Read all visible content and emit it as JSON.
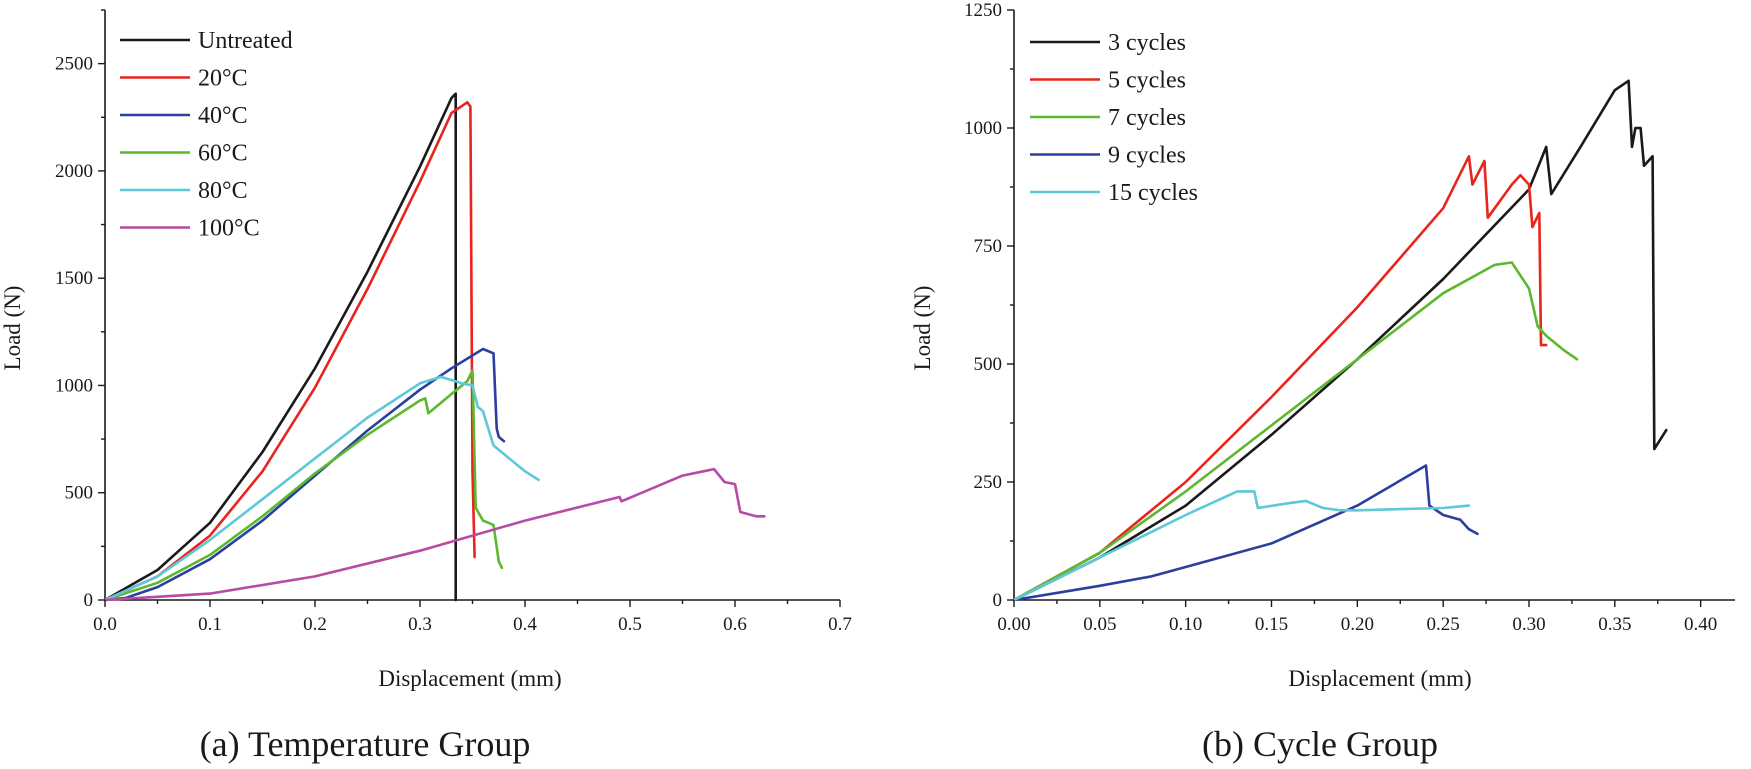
{
  "chart_data": [
    {
      "type": "line",
      "caption": "(a) Temperature Group",
      "xlabel": "Displacement (mm)",
      "ylabel": "Load (N)",
      "xlim": [
        0,
        0.7
      ],
      "ylim": [
        0,
        2750
      ],
      "xticks": [
        0.0,
        0.1,
        0.2,
        0.3,
        0.4,
        0.5,
        0.6,
        0.7
      ],
      "xtick_labels": [
        "0.0",
        "0.1",
        "0.2",
        "0.3",
        "0.4",
        "0.5",
        "0.6",
        "0.7"
      ],
      "yticks": [
        0,
        500,
        1000,
        1500,
        2000,
        2500
      ],
      "ytick_labels": [
        "0",
        "500",
        "1000",
        "1500",
        "2000",
        "2500"
      ],
      "grid": false,
      "legend_position": "top-left",
      "series": [
        {
          "name": "Untreated",
          "color": "#1a1a1a",
          "x": [
            0,
            0.05,
            0.1,
            0.15,
            0.2,
            0.25,
            0.3,
            0.33,
            0.334,
            0.334
          ],
          "y": [
            0,
            140,
            360,
            690,
            1080,
            1530,
            2020,
            2340,
            2360,
            0
          ]
        },
        {
          "name": "20°C",
          "color": "#e8241c",
          "x": [
            0,
            0.05,
            0.1,
            0.15,
            0.2,
            0.25,
            0.3,
            0.33,
            0.345,
            0.348,
            0.35,
            0.352
          ],
          "y": [
            0,
            110,
            300,
            600,
            990,
            1450,
            1950,
            2270,
            2320,
            2300,
            600,
            200
          ]
        },
        {
          "name": "40°C",
          "color": "#2b3f9e",
          "x": [
            0,
            0.02,
            0.05,
            0.1,
            0.15,
            0.2,
            0.25,
            0.3,
            0.33,
            0.36,
            0.37,
            0.373,
            0.375,
            0.38
          ],
          "y": [
            0,
            10,
            60,
            190,
            370,
            580,
            790,
            980,
            1080,
            1170,
            1150,
            800,
            760,
            740
          ]
        },
        {
          "name": "60°C",
          "color": "#5cb82e",
          "x": [
            0,
            0.05,
            0.1,
            0.15,
            0.2,
            0.25,
            0.3,
            0.305,
            0.308,
            0.33,
            0.345,
            0.35,
            0.353,
            0.36,
            0.37,
            0.375,
            0.378
          ],
          "y": [
            0,
            80,
            210,
            390,
            590,
            770,
            930,
            940,
            870,
            960,
            1020,
            1070,
            430,
            370,
            350,
            180,
            150
          ]
        },
        {
          "name": "80°C",
          "color": "#5cc8d8",
          "x": [
            0,
            0.05,
            0.1,
            0.15,
            0.2,
            0.25,
            0.3,
            0.32,
            0.34,
            0.35,
            0.355,
            0.36,
            0.37,
            0.38,
            0.39,
            0.4,
            0.413
          ],
          "y": [
            0,
            110,
            280,
            470,
            660,
            850,
            1010,
            1040,
            1010,
            1000,
            900,
            880,
            720,
            680,
            640,
            600,
            560
          ]
        },
        {
          "name": "100°C",
          "color": "#b84aa6",
          "x": [
            0,
            0.1,
            0.2,
            0.3,
            0.4,
            0.49,
            0.492,
            0.55,
            0.57,
            0.58,
            0.59,
            0.6,
            0.605,
            0.62,
            0.628
          ],
          "y": [
            0,
            30,
            110,
            230,
            370,
            480,
            460,
            580,
            600,
            610,
            550,
            540,
            410,
            390,
            390
          ]
        }
      ]
    },
    {
      "type": "line",
      "caption": "(b) Cycle Group",
      "xlabel": "Displacement (mm)",
      "ylabel": "Load (N)",
      "xlim": [
        0,
        0.42
      ],
      "ylim": [
        0,
        1250
      ],
      "xticks": [
        0.0,
        0.05,
        0.1,
        0.15,
        0.2,
        0.25,
        0.3,
        0.35,
        0.4
      ],
      "xtick_labels": [
        "0.00",
        "0.05",
        "0.10",
        "0.15",
        "0.20",
        "0.25",
        "0.30",
        "0.35",
        "0.40"
      ],
      "yticks": [
        0,
        250,
        500,
        750,
        1000,
        1250
      ],
      "ytick_labels": [
        "0",
        "250",
        "500",
        "750",
        "1000",
        "1250"
      ],
      "grid": false,
      "legend_position": "top-left",
      "series": [
        {
          "name": "3 cycles",
          "color": "#1a1a1a",
          "x": [
            0,
            0.05,
            0.1,
            0.15,
            0.2,
            0.25,
            0.3,
            0.31,
            0.313,
            0.33,
            0.35,
            0.358,
            0.36,
            0.362,
            0.365,
            0.367,
            0.372,
            0.373,
            0.38
          ],
          "y": [
            0,
            90,
            200,
            350,
            510,
            680,
            870,
            960,
            860,
            960,
            1080,
            1100,
            960,
            1000,
            1000,
            920,
            940,
            320,
            360
          ]
        },
        {
          "name": "5 cycles",
          "color": "#e8241c",
          "x": [
            0,
            0.05,
            0.1,
            0.15,
            0.2,
            0.25,
            0.265,
            0.267,
            0.274,
            0.276,
            0.29,
            0.295,
            0.3,
            0.302,
            0.306,
            0.307,
            0.31
          ],
          "y": [
            0,
            100,
            250,
            430,
            620,
            830,
            940,
            880,
            930,
            810,
            880,
            900,
            880,
            790,
            820,
            540,
            540
          ]
        },
        {
          "name": "7 cycles",
          "color": "#5cb82e",
          "x": [
            0,
            0.05,
            0.1,
            0.15,
            0.2,
            0.25,
            0.28,
            0.29,
            0.3,
            0.305,
            0.31,
            0.32,
            0.328
          ],
          "y": [
            0,
            100,
            230,
            370,
            510,
            650,
            710,
            715,
            660,
            580,
            560,
            530,
            510
          ]
        },
        {
          "name": "9 cycles",
          "color": "#2b3f9e",
          "x": [
            0,
            0.05,
            0.08,
            0.1,
            0.15,
            0.2,
            0.24,
            0.242,
            0.25,
            0.26,
            0.265,
            0.27
          ],
          "y": [
            0,
            30,
            50,
            70,
            120,
            200,
            285,
            200,
            180,
            170,
            150,
            140
          ]
        },
        {
          "name": "15 cycles",
          "color": "#5cc8d8",
          "x": [
            0,
            0.05,
            0.1,
            0.13,
            0.14,
            0.142,
            0.16,
            0.17,
            0.18,
            0.19,
            0.2,
            0.25,
            0.265
          ],
          "y": [
            0,
            90,
            180,
            230,
            230,
            195,
            205,
            210,
            195,
            190,
            190,
            195,
            200
          ]
        }
      ]
    }
  ]
}
